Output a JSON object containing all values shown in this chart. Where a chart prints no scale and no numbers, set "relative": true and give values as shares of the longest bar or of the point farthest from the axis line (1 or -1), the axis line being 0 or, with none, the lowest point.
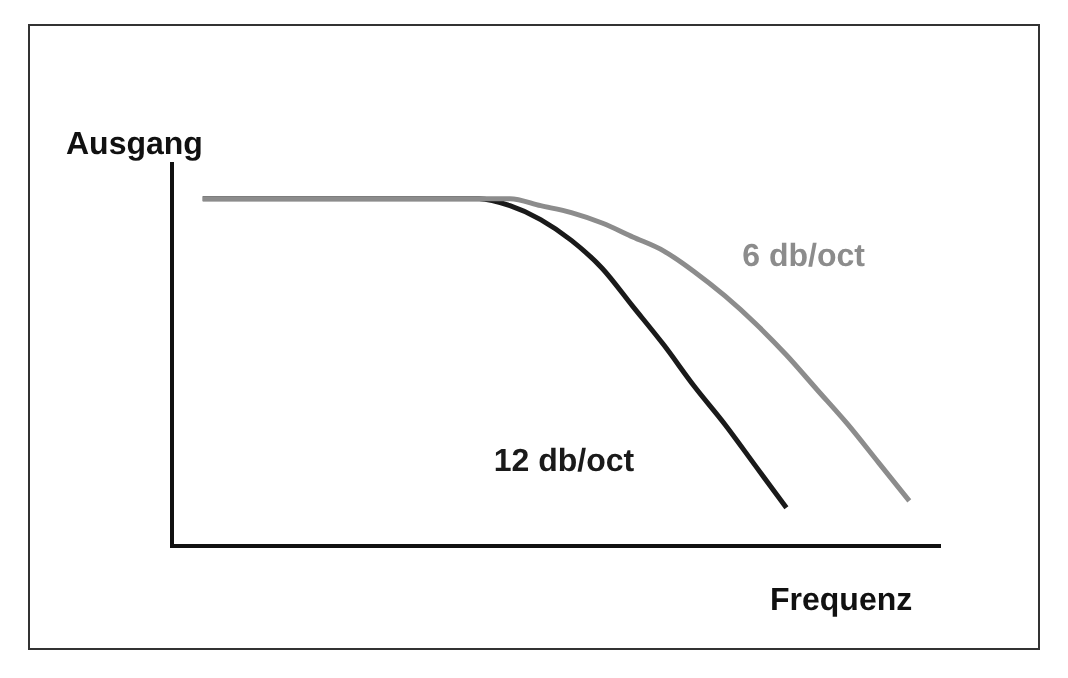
{
  "chart_data": {
    "type": "line",
    "relative": true,
    "xlabel": "Frequenz",
    "ylabel": "Ausgang",
    "categories": [
      null,
      null,
      null,
      null,
      null,
      null,
      null,
      null,
      null,
      null,
      null,
      null,
      null,
      null,
      null,
      null,
      null,
      null,
      null,
      null,
      null,
      null,
      null,
      null,
      null,
      null
    ],
    "marker": "none",
    "line_style": "solid",
    "grid": false,
    "legend": false,
    "series": [
      {
        "name": "6 db/oct",
        "color": "#8c8c8c",
        "values": [
          null,
          1,
          1,
          1,
          1,
          1,
          1,
          1,
          1,
          1,
          1,
          1,
          0.98,
          0.96,
          0.93,
          0.89,
          0.85,
          0.79,
          0.72,
          0.64,
          0.55,
          0.45,
          0.35,
          0.24,
          0.13,
          null
        ]
      },
      {
        "name": "12 db/oct",
        "color": "#1a1a1a",
        "values": [
          null,
          1,
          1,
          1,
          1,
          1,
          1,
          1,
          1,
          1,
          1,
          0.98,
          0.94,
          0.88,
          0.8,
          0.69,
          0.58,
          0.46,
          0.35,
          0.23,
          0.11,
          null,
          null,
          null,
          null,
          null
        ]
      }
    ]
  }
}
